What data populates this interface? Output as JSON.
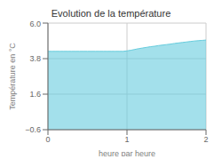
{
  "chart_data": {
    "type": "area",
    "title": "Evolution de la température",
    "xlabel": "heure par heure",
    "ylabel": "Température en °C",
    "x": [
      0.0,
      0.05,
      0.1,
      0.15,
      0.2,
      0.25,
      0.3,
      0.35,
      0.4,
      0.45,
      0.5,
      0.55,
      0.6,
      0.65,
      0.7,
      0.75,
      0.8,
      0.85,
      0.9,
      0.95,
      1.0,
      1.05,
      1.1,
      1.15,
      1.2,
      1.25,
      1.3,
      1.35,
      1.4,
      1.45,
      1.5,
      1.55,
      1.6,
      1.65,
      1.7,
      1.75,
      1.8,
      1.85,
      1.9,
      1.95,
      2.0
    ],
    "values": [
      4.25,
      4.25,
      4.25,
      4.25,
      4.25,
      4.25,
      4.25,
      4.25,
      4.25,
      4.25,
      4.25,
      4.25,
      4.25,
      4.25,
      4.25,
      4.25,
      4.25,
      4.25,
      4.25,
      4.25,
      4.28,
      4.32,
      4.37,
      4.42,
      4.46,
      4.5,
      4.54,
      4.57,
      4.61,
      4.64,
      4.67,
      4.7,
      4.74,
      4.77,
      4.8,
      4.83,
      4.86,
      4.89,
      4.91,
      4.93,
      4.95
    ],
    "color": "#66ccdd",
    "xlim": [
      0,
      2
    ],
    "ylim": [
      -0.6,
      6.0
    ],
    "xticks": [
      0,
      1,
      2
    ],
    "yticks": [
      {
        "value": -0.6,
        "label": "−0.6"
      },
      1.6,
      3.8,
      {
        "value": 6.0,
        "label": "6.0"
      }
    ],
    "grid": true
  }
}
